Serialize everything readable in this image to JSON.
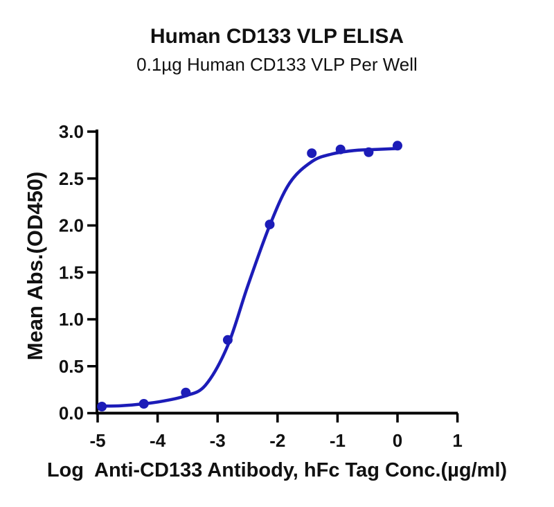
{
  "chart_data": {
    "type": "scatter",
    "title": "Human CD133 VLP ELISA",
    "subtitle": "0.1µg Human CD133 VLP Per Well",
    "xlabel": "Log  Anti-CD133 Antibody, hFc Tag Conc.(µg/ml)",
    "ylabel": "Mean Abs.(OD450)",
    "xlim": [
      -5,
      1
    ],
    "ylim": [
      0,
      3
    ],
    "xticks": [
      -5,
      -4,
      -3,
      -2,
      -1,
      0,
      1
    ],
    "xtick_labels": [
      "-5",
      "-4",
      "-3",
      "-2",
      "-1",
      "0",
      "1"
    ],
    "ytick_labels": [
      "0.0",
      "0.5",
      "1.0",
      "1.5",
      "2.0",
      "2.5",
      "3.0"
    ],
    "grid": false,
    "legend": "none",
    "series": [
      {
        "name": "Anti-CD133 Antibody, hFc Tag",
        "marker": "circle",
        "color": "#1C1CB8",
        "x": [
          -4.93,
          -4.23,
          -3.53,
          -2.83,
          -2.13,
          -1.43,
          -0.95,
          -0.48,
          0.0
        ],
        "y": [
          0.07,
          0.1,
          0.22,
          0.78,
          2.01,
          2.77,
          2.81,
          2.78,
          2.85
        ]
      }
    ],
    "fit_curve": {
      "model": "4PL sigmoid (dose-response)",
      "color": "#1C1CB8",
      "x": [
        -4.93,
        -4.6,
        -4.23,
        -3.9,
        -3.53,
        -3.2,
        -2.83,
        -2.5,
        -2.13,
        -1.8,
        -1.43,
        -1.1,
        -0.7,
        -0.35,
        0.0
      ],
      "y": [
        0.075,
        0.08,
        0.1,
        0.13,
        0.185,
        0.3,
        0.72,
        1.35,
        2.0,
        2.45,
        2.68,
        2.76,
        2.8,
        2.81,
        2.82
      ]
    },
    "axis_color": "#000000",
    "text_color": "#111111"
  }
}
